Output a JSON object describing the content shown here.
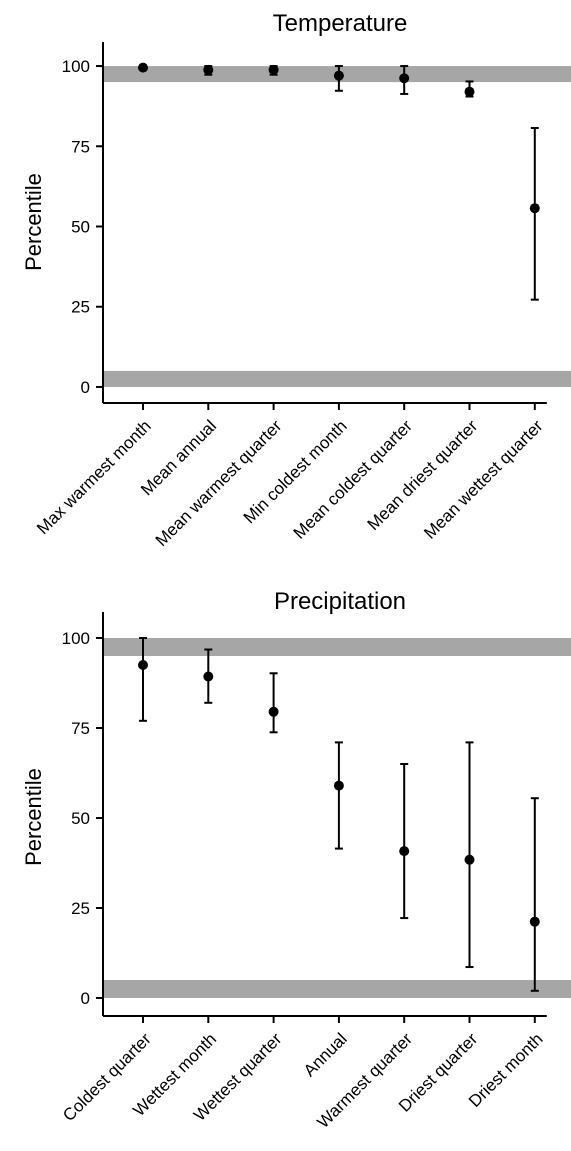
{
  "colors": {
    "reference_band": "#a6a6a6",
    "marks": "#000000"
  },
  "chart_data": [
    {
      "type": "scatter",
      "title": "Temperature",
      "xlabel": "",
      "ylabel": "Percentile",
      "ylim": [
        -5,
        105
      ],
      "yticks": [
        0,
        25,
        50,
        75,
        100
      ],
      "reference_bands": [
        [
          95,
          100
        ],
        [
          0,
          5
        ]
      ],
      "grid": false,
      "categories": [
        "Max warmest month",
        "Mean annual",
        "Mean warmest quarter",
        "Min coldest month",
        "Mean coldest quarter",
        "Mean driest quarter",
        "Mean wettest quarter"
      ],
      "values": [
        99.5,
        98.8,
        98.8,
        97,
        96.2,
        92,
        55.7
      ],
      "lower": [
        99,
        97.3,
        97.3,
        92.3,
        91.3,
        90.5,
        27.2
      ],
      "upper": [
        100,
        100,
        100,
        100,
        100,
        95.2,
        80.7
      ]
    },
    {
      "type": "scatter",
      "title": "Precipitation",
      "xlabel": "",
      "ylabel": "Percentile",
      "ylim": [
        -5,
        105
      ],
      "yticks": [
        0,
        25,
        50,
        75,
        100
      ],
      "reference_bands": [
        [
          95,
          100
        ],
        [
          0,
          5
        ]
      ],
      "grid": false,
      "categories": [
        "Coldest quarter",
        "Wettest month",
        "Wettest quarter",
        "Annual",
        "Warmest quarter",
        "Driest quarter",
        "Driest month"
      ],
      "values": [
        92.5,
        89.3,
        79.5,
        59,
        40.8,
        38.4,
        21.2
      ],
      "lower": [
        77,
        82,
        73.8,
        41.5,
        22.2,
        8.6,
        2
      ],
      "upper": [
        100,
        96.8,
        90.2,
        71,
        65,
        71,
        55.5
      ]
    }
  ]
}
